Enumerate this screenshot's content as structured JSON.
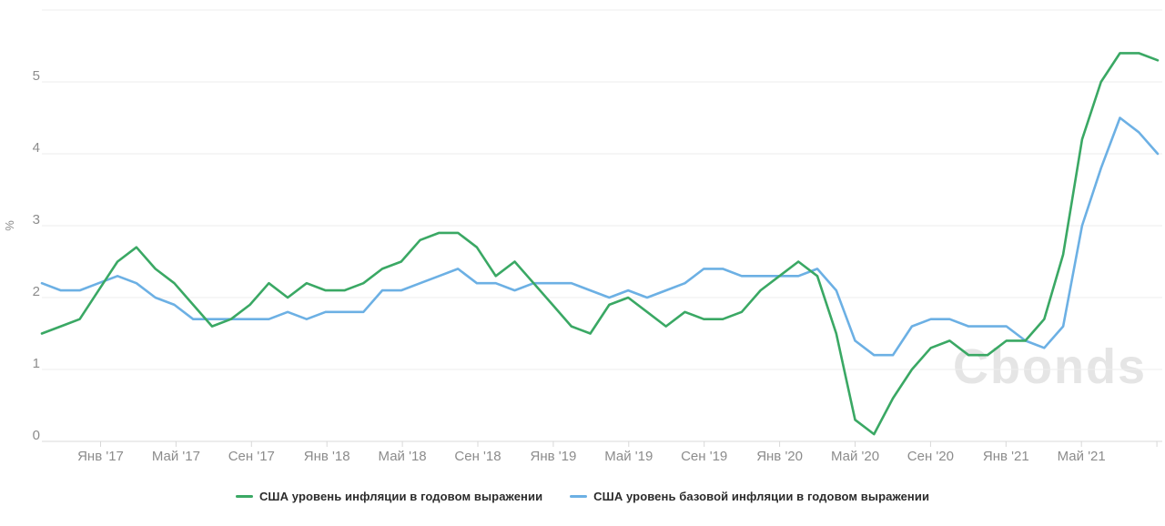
{
  "chart": {
    "watermark": "Cbonds",
    "y_axis": {
      "unit": "%",
      "tick_labels": [
        "0",
        "1",
        "2",
        "3",
        "4",
        "5"
      ]
    },
    "x_axis": {
      "tick_labels": [
        "Янв '17",
        "Май '17",
        "Сен '17",
        "Янв '18",
        "Май '18",
        "Сен '18",
        "Янв '19",
        "Май '19",
        "Сен '19",
        "Янв '20",
        "Май '20",
        "Сен '20",
        "Янв '21",
        "Май '21"
      ]
    },
    "colors": {
      "inflation_line": "#3aa864",
      "core_inflation_line": "#6cb0e4",
      "grid": "#ededed",
      "axis": "#d8d8d8",
      "tick_text": "#8c8c8c",
      "watermark": "#e5e5e5",
      "legend_text": "#2b2b2b"
    }
  },
  "chart_data": {
    "type": "line",
    "title": "",
    "xlabel": "",
    "ylabel": "%",
    "ylim": [
      0,
      6
    ],
    "grid": true,
    "legend_position": "bottom",
    "x": [
      "Сен '16",
      "Окт '16",
      "Ноя '16",
      "Дек '16",
      "Янв '17",
      "Фев '17",
      "Мар '17",
      "Апр '17",
      "Май '17",
      "Июн '17",
      "Июл '17",
      "Авг '17",
      "Сен '17",
      "Окт '17",
      "Ноя '17",
      "Дек '17",
      "Янв '18",
      "Фев '18",
      "Мар '18",
      "Апр '18",
      "Май '18",
      "Июн '18",
      "Июл '18",
      "Авг '18",
      "Сен '18",
      "Окт '18",
      "Ноя '18",
      "Дек '18",
      "Янв '19",
      "Фев '19",
      "Мар '19",
      "Апр '19",
      "Май '19",
      "Июн '19",
      "Июл '19",
      "Авг '19",
      "Сен '19",
      "Окт '19",
      "Ноя '19",
      "Дек '19",
      "Янв '20",
      "Фев '20",
      "Мар '20",
      "Апр '20",
      "Май '20",
      "Июн '20",
      "Июл '20",
      "Авг '20",
      "Сен '20",
      "Окт '20",
      "Ноя '20",
      "Дек '20",
      "Янв '21",
      "Фев '21",
      "Мар '21",
      "Апр '21",
      "Май '21",
      "Июн '21",
      "Июл '21",
      "Авг '21"
    ],
    "series": [
      {
        "name": "США уровень инфляции в годовом выражении",
        "color": "#3aa864",
        "values": [
          1.5,
          1.6,
          1.7,
          2.1,
          2.5,
          2.7,
          2.4,
          2.2,
          1.9,
          1.6,
          1.7,
          1.9,
          2.2,
          2.0,
          2.2,
          2.1,
          2.1,
          2.2,
          2.4,
          2.5,
          2.8,
          2.9,
          2.9,
          2.7,
          2.3,
          2.5,
          2.2,
          1.9,
          1.6,
          1.5,
          1.9,
          2.0,
          1.8,
          1.6,
          1.8,
          1.7,
          1.7,
          1.8,
          2.1,
          2.3,
          2.5,
          2.3,
          1.5,
          0.3,
          0.1,
          0.6,
          1.0,
          1.3,
          1.4,
          1.2,
          1.2,
          1.4,
          1.4,
          1.7,
          2.6,
          4.2,
          5.0,
          5.4,
          5.4,
          5.3
        ]
      },
      {
        "name": "США уровень базовой инфляции в годовом выражении",
        "color": "#6cb0e4",
        "values": [
          2.2,
          2.1,
          2.1,
          2.2,
          2.3,
          2.2,
          2.0,
          1.9,
          1.7,
          1.7,
          1.7,
          1.7,
          1.7,
          1.8,
          1.7,
          1.8,
          1.8,
          1.8,
          2.1,
          2.1,
          2.2,
          2.3,
          2.4,
          2.2,
          2.2,
          2.1,
          2.2,
          2.2,
          2.2,
          2.1,
          2.0,
          2.1,
          2.0,
          2.1,
          2.2,
          2.4,
          2.4,
          2.3,
          2.3,
          2.3,
          2.3,
          2.4,
          2.1,
          1.4,
          1.2,
          1.2,
          1.6,
          1.7,
          1.7,
          1.6,
          1.6,
          1.6,
          1.4,
          1.3,
          1.6,
          3.0,
          3.8,
          4.5,
          4.3,
          4.0
        ]
      }
    ]
  }
}
